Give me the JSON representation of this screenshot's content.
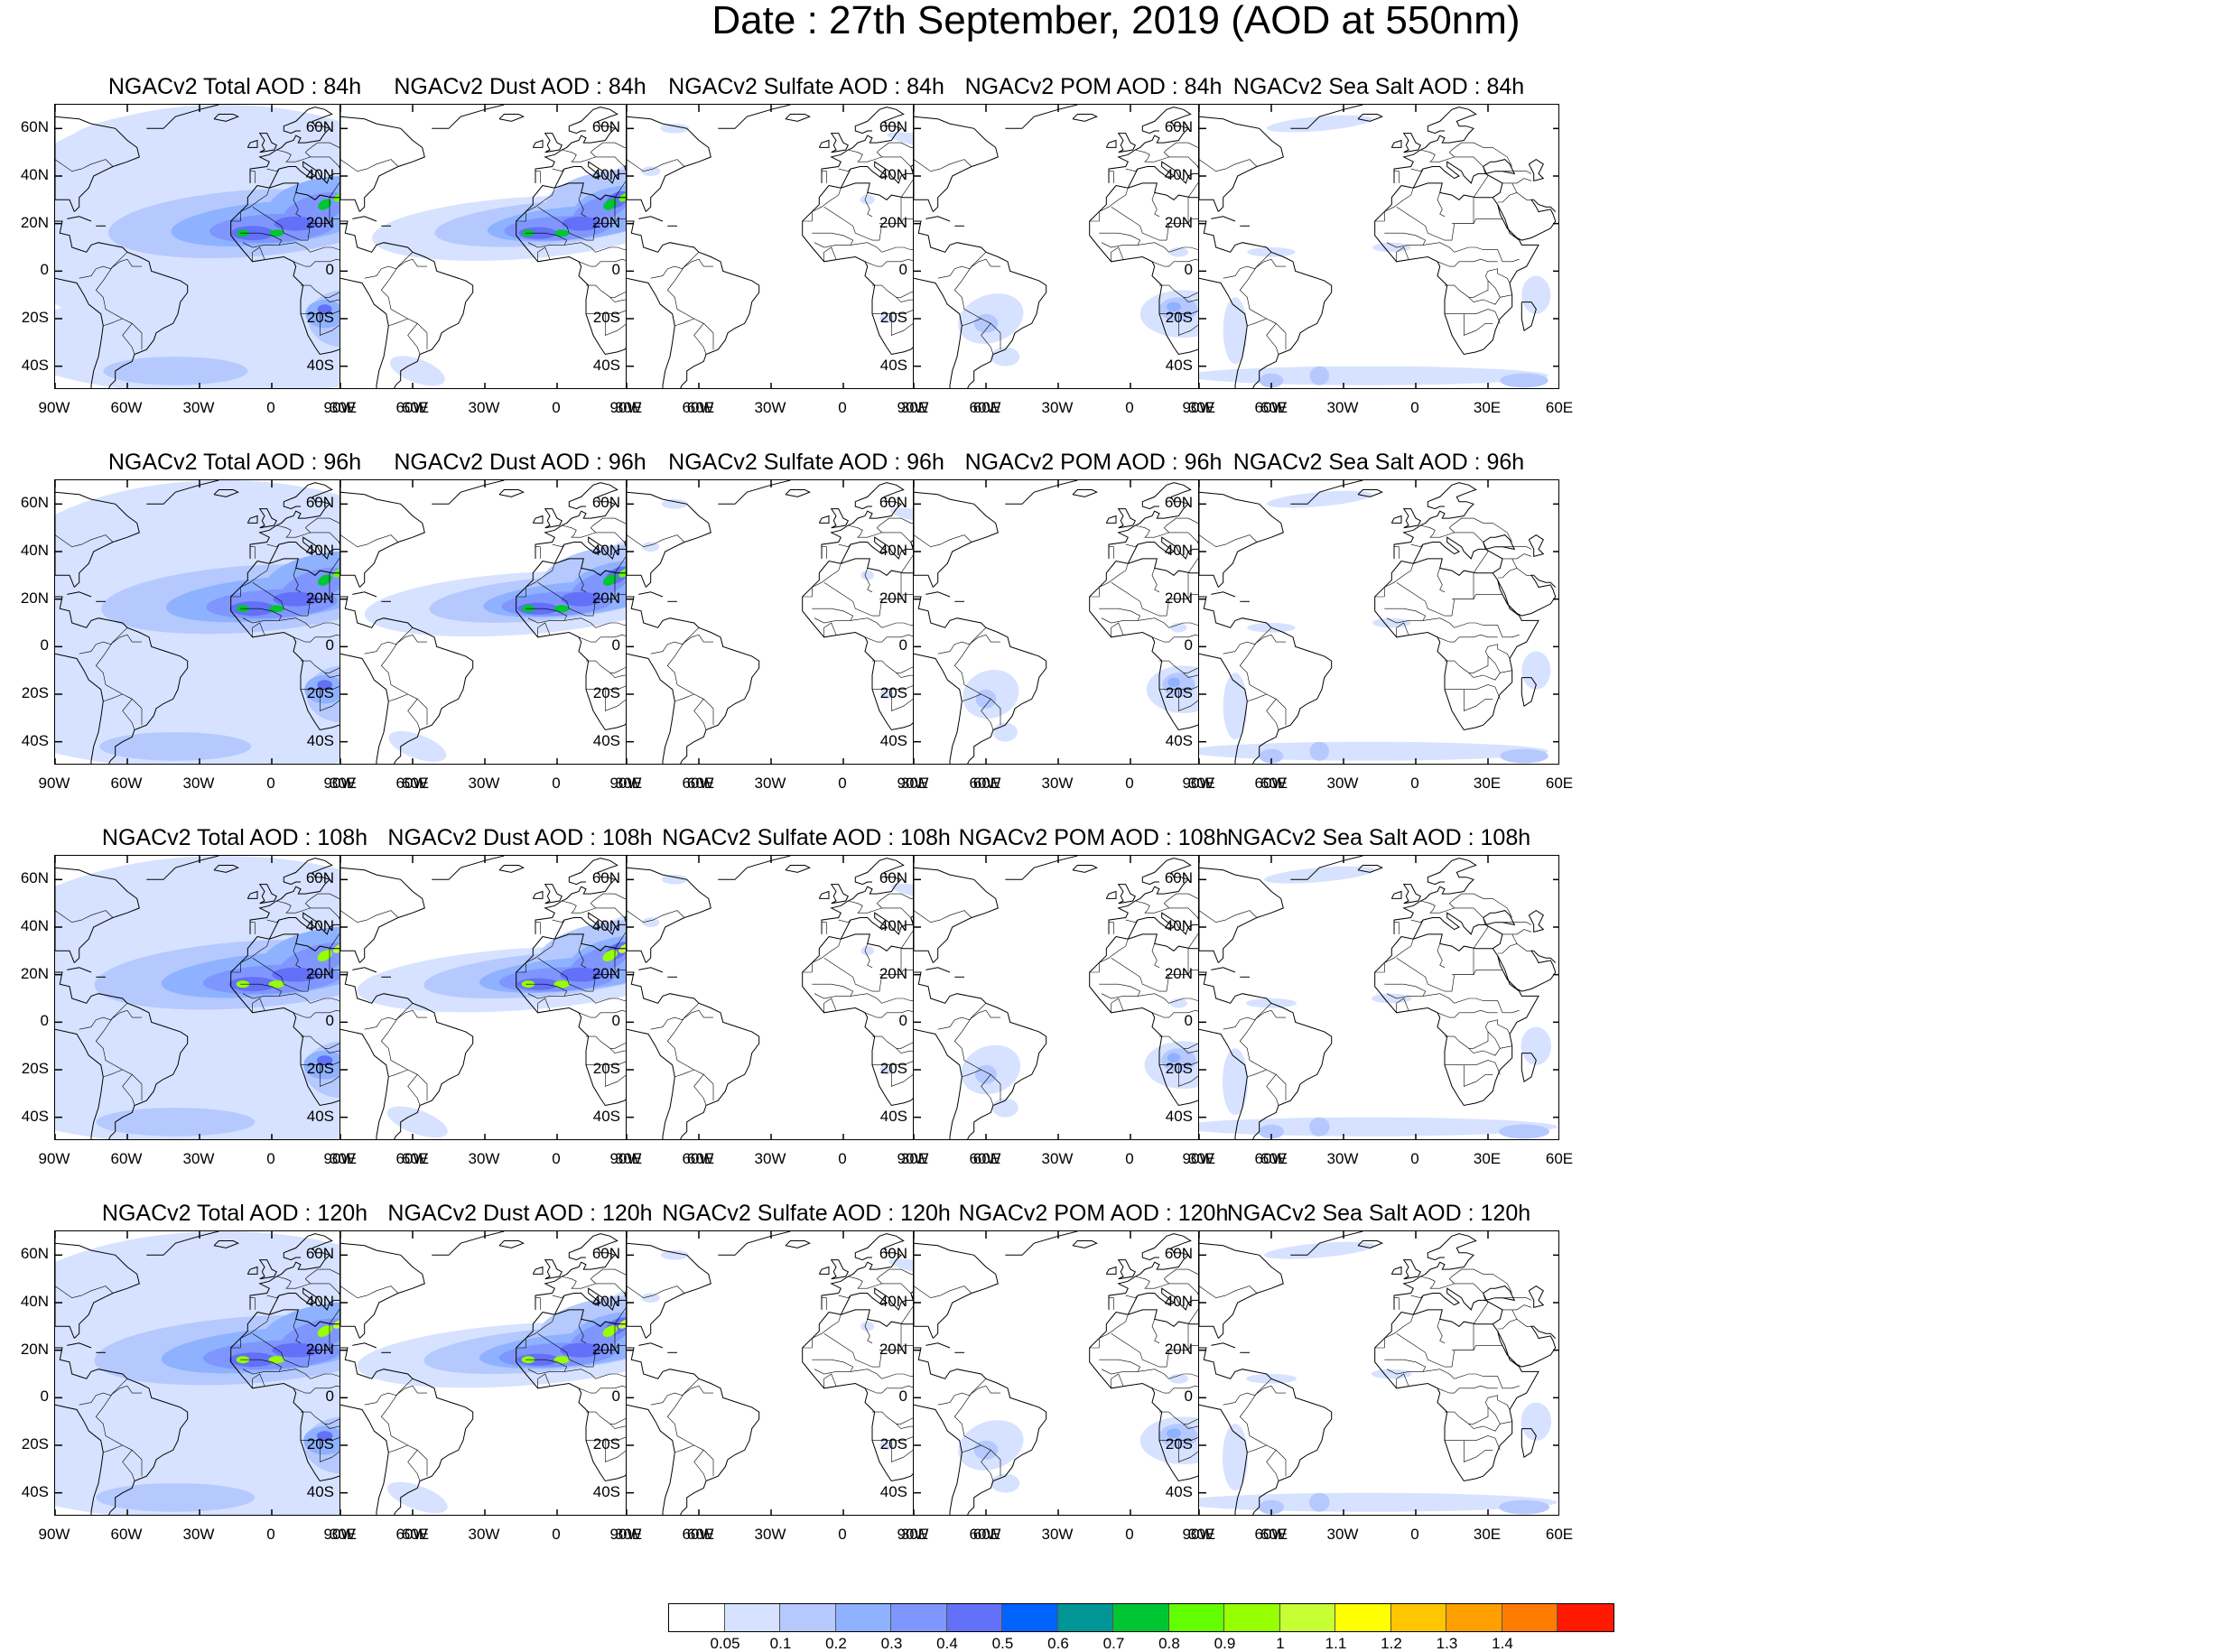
{
  "title": "Date : 27th September, 2019 (AOD at 550nm)",
  "lat_labels": [
    "60N",
    "40N",
    "20N",
    "0",
    "20S",
    "40S"
  ],
  "lon_labels": [
    "90W",
    "60W",
    "30W",
    "0",
    "30E",
    "60E"
  ],
  "panels": [
    {
      "title": "NGACv2 Total AOD : 84h",
      "field": "total",
      "hour": 84,
      "intensity": 1.0
    },
    {
      "title": "NGACv2 Dust AOD : 84h",
      "field": "dust",
      "hour": 84,
      "intensity": 1.0
    },
    {
      "title": "NGACv2 Sulfate AOD : 84h",
      "field": "sulfate",
      "hour": 84,
      "intensity": 1.0
    },
    {
      "title": "NGACv2 POM AOD : 84h",
      "field": "pom",
      "hour": 84,
      "intensity": 1.0
    },
    {
      "title": "NGACv2 Sea Salt AOD : 84h",
      "field": "seasalt",
      "hour": 84,
      "intensity": 1.0
    },
    {
      "title": "NGACv2 Total AOD : 96h",
      "field": "total",
      "hour": 96,
      "intensity": 1.05
    },
    {
      "title": "NGACv2 Dust AOD : 96h",
      "field": "dust",
      "hour": 96,
      "intensity": 1.05
    },
    {
      "title": "NGACv2 Sulfate AOD : 96h",
      "field": "sulfate",
      "hour": 96,
      "intensity": 0.9
    },
    {
      "title": "NGACv2 POM AOD : 96h",
      "field": "pom",
      "hour": 96,
      "intensity": 0.85
    },
    {
      "title": "NGACv2 Sea Salt AOD : 96h",
      "field": "seasalt",
      "hour": 96,
      "intensity": 1.0
    },
    {
      "title": "NGACv2 Total AOD : 108h",
      "field": "total",
      "hour": 108,
      "intensity": 1.15
    },
    {
      "title": "NGACv2 Dust AOD : 108h",
      "field": "dust",
      "hour": 108,
      "intensity": 1.15
    },
    {
      "title": "NGACv2 Sulfate AOD : 108h",
      "field": "sulfate",
      "hour": 108,
      "intensity": 0.9
    },
    {
      "title": "NGACv2 POM AOD : 108h",
      "field": "pom",
      "hour": 108,
      "intensity": 0.9
    },
    {
      "title": "NGACv2 Sea Salt AOD : 108h",
      "field": "seasalt",
      "hour": 108,
      "intensity": 1.05
    },
    {
      "title": "NGACv2 Total AOD : 120h",
      "field": "total",
      "hour": 120,
      "intensity": 1.2
    },
    {
      "title": "NGACv2 Dust AOD : 120h",
      "field": "dust",
      "hour": 120,
      "intensity": 1.2
    },
    {
      "title": "NGACv2 Sulfate AOD : 120h",
      "field": "sulfate",
      "hour": 120,
      "intensity": 0.95
    },
    {
      "title": "NGACv2 POM AOD : 120h",
      "field": "pom",
      "hour": 120,
      "intensity": 1.0
    },
    {
      "title": "NGACv2 Sea Salt  AOD : 120h",
      "field": "seasalt",
      "hour": 120,
      "intensity": 1.05
    }
  ],
  "colorbar": {
    "colors": [
      "#ffffff",
      "#d6e2ff",
      "#b5c9ff",
      "#8eb2ff",
      "#7f96ff",
      "#6370f8",
      "#0063ff",
      "#009696",
      "#00c633",
      "#63ff00",
      "#96ff00",
      "#c6ff33",
      "#ffff00",
      "#ffc600",
      "#ffa000",
      "#ff7c00",
      "#ff1900"
    ],
    "labels": [
      "0.05",
      "0.1",
      "0.2",
      "0.3",
      "0.4",
      "0.5",
      "0.6",
      "0.7",
      "0.8",
      "0.9",
      "1",
      "1.1",
      "1.2",
      "1.3",
      "1.4"
    ]
  }
}
